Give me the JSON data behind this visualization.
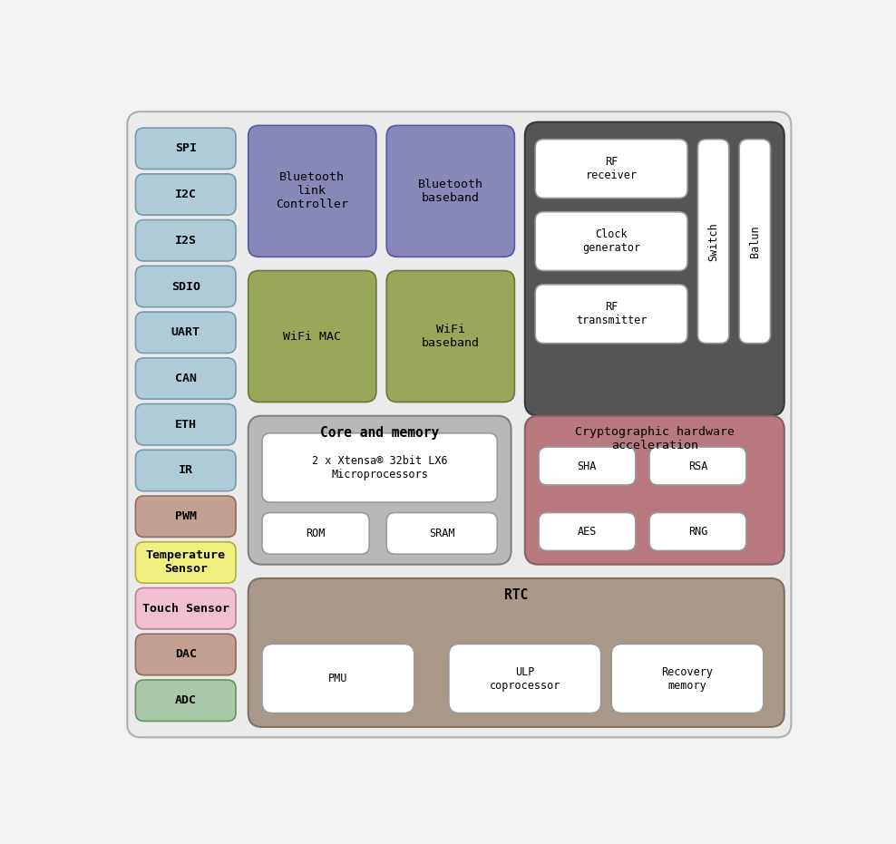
{
  "fig_width": 9.88,
  "fig_height": 9.31,
  "bg_color": "#f2f2f2",
  "outer_bg": "#ebebeb",
  "outer_border": "#b0b0b0",
  "left_boxes": [
    {
      "label": "SPI",
      "color": "#aeccd8",
      "border": "#7a9aaa"
    },
    {
      "label": "I2C",
      "color": "#aeccd8",
      "border": "#7a9aaa"
    },
    {
      "label": "I2S",
      "color": "#aeccd8",
      "border": "#7a9aaa"
    },
    {
      "label": "SDIO",
      "color": "#aeccd8",
      "border": "#7a9aaa"
    },
    {
      "label": "UART",
      "color": "#aeccd8",
      "border": "#7a9aaa"
    },
    {
      "label": "CAN",
      "color": "#aeccd8",
      "border": "#7a9aaa"
    },
    {
      "label": "ETH",
      "color": "#aeccd8",
      "border": "#7a9aaa"
    },
    {
      "label": "IR",
      "color": "#aeccd8",
      "border": "#7a9aaa"
    },
    {
      "label": "PWM",
      "color": "#c4a090",
      "border": "#906a5a"
    },
    {
      "label": "Temperature\nSensor",
      "color": "#f0f080",
      "border": "#b0b040"
    },
    {
      "label": "Touch Sensor",
      "color": "#f0c0d0",
      "border": "#c08090"
    },
    {
      "label": "DAC",
      "color": "#c4a090",
      "border": "#906a5a"
    },
    {
      "label": "ADC",
      "color": "#a8c8a8",
      "border": "#689068"
    }
  ],
  "bt_link_box": {
    "label": "Bluetooth\nlink\nController",
    "color": "#8888b8",
    "border": "#5858a0"
  },
  "bt_base_box": {
    "label": "Bluetooth\nbaseband",
    "color": "#8888b8",
    "border": "#5858a0"
  },
  "wifi_mac_box": {
    "label": "WiFi MAC",
    "color": "#98a858",
    "border": "#6a7838"
  },
  "wifi_base_box": {
    "label": "WiFi\nbaseband",
    "color": "#98a858",
    "border": "#6a7838"
  },
  "rf_section_bg": "#555555",
  "rf_section_border": "#383838",
  "rf_boxes": [
    {
      "label": "RF\nreceiver",
      "color": "#ffffff",
      "border": "#999999"
    },
    {
      "label": "Clock\ngenerator",
      "color": "#ffffff",
      "border": "#999999"
    },
    {
      "label": "RF\ntransmitter",
      "color": "#ffffff",
      "border": "#999999"
    }
  ],
  "switch_box": {
    "label": "Switch",
    "color": "#ffffff",
    "border": "#999999"
  },
  "balun_box": {
    "label": "Balun",
    "color": "#ffffff",
    "border": "#999999"
  },
  "core_section_bg": "#b8b8b8",
  "core_section_border": "#808080",
  "core_title": "Core and memory",
  "core_cpu_box": {
    "label": "2 x Xtensa® 32bit LX6\nMicroprocessors",
    "color": "#ffffff",
    "border": "#999999"
  },
  "core_rom_box": {
    "label": "ROM",
    "color": "#ffffff",
    "border": "#999999"
  },
  "core_sram_box": {
    "label": "SRAM",
    "color": "#ffffff",
    "border": "#999999"
  },
  "crypto_section_bg": "#b87880",
  "crypto_section_border": "#886065",
  "crypto_title": "Cryptographic hardware\nacceleration",
  "crypto_boxes": [
    {
      "label": "SHA",
      "color": "#ffffff",
      "border": "#999999"
    },
    {
      "label": "RSA",
      "color": "#ffffff",
      "border": "#999999"
    },
    {
      "label": "AES",
      "color": "#ffffff",
      "border": "#999999"
    },
    {
      "label": "RNG",
      "color": "#ffffff",
      "border": "#999999"
    }
  ],
  "rtc_section_bg": "#a89888",
  "rtc_section_border": "#807060",
  "rtc_title": "RTC",
  "rtc_boxes": [
    {
      "label": "PMU",
      "color": "#ffffff",
      "border": "#999999"
    },
    {
      "label": "ULP\ncoprocessor",
      "color": "#ffffff",
      "border": "#999999"
    },
    {
      "label": "Recovery\nmemory",
      "color": "#ffffff",
      "border": "#999999"
    }
  ],
  "font_family": "monospace",
  "label_fontsize": 9.5,
  "small_fontsize": 8.5,
  "title_fontsize": 10.5
}
